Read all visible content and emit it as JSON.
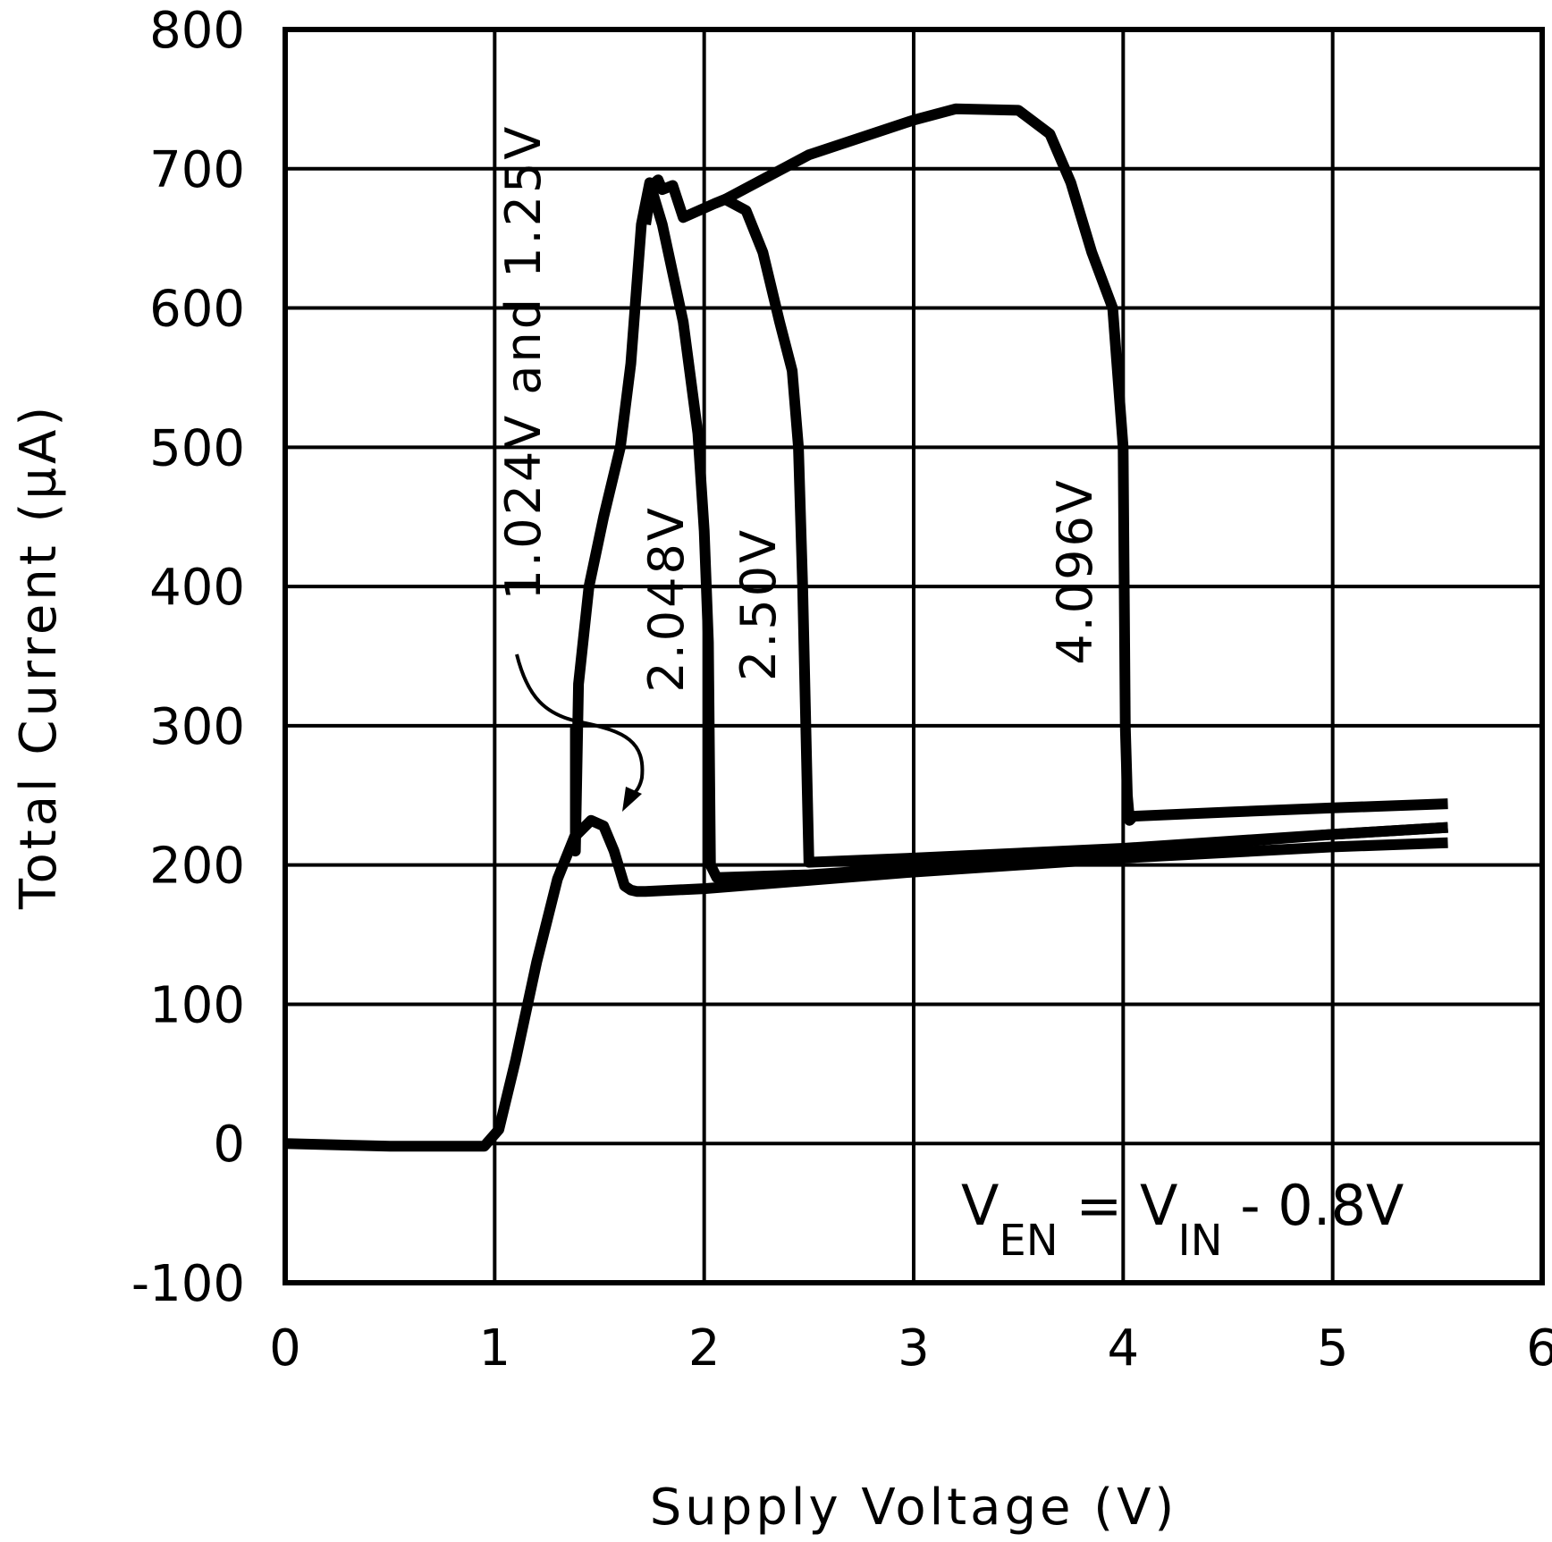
{
  "chart_data": {
    "type": "line",
    "title": "",
    "xlabel": "Supply Voltage (V)",
    "ylabel": "Total Current (µA)",
    "xlim": [
      0,
      6
    ],
    "ylim": [
      -100,
      800
    ],
    "x_ticks": [
      0,
      1,
      2,
      3,
      4,
      5,
      6
    ],
    "y_ticks": [
      -100,
      0,
      100,
      200,
      300,
      400,
      500,
      600,
      700,
      800
    ],
    "grid": true,
    "annotation": {
      "v_main": "V",
      "en_sub": "EN",
      "mid": " = V",
      "in_sub": "IN",
      "tail": " - 0.8V"
    },
    "series": [
      {
        "name": "1.024V and 1.25V",
        "x": [
          0,
          0.5,
          0.95,
          1.02,
          1.1,
          1.2,
          1.3,
          1.38,
          1.46,
          1.52,
          1.57,
          1.62,
          1.65,
          1.68,
          1.72,
          2.0,
          3.0,
          4.0,
          5.0,
          5.55
        ],
        "y": [
          0,
          -2,
          -2,
          10,
          60,
          130,
          190,
          220,
          232,
          228,
          210,
          185,
          182,
          181,
          181,
          183,
          195,
          205,
          213,
          216
        ]
      },
      {
        "name": "2.048V",
        "x": [
          1.38,
          1.385,
          1.385,
          1.4,
          1.45,
          1.52,
          1.6,
          1.65,
          1.7,
          1.74,
          1.8,
          1.9,
          1.97,
          2.0,
          2.02,
          2.03,
          2.06,
          2.5,
          3.0,
          4.0,
          5.0,
          5.55
        ],
        "y": [
          300,
          300,
          210,
          330,
          400,
          450,
          500,
          560,
          660,
          690,
          660,
          590,
          510,
          440,
          360,
          200,
          191,
          193,
          198,
          210,
          222,
          227
        ]
      },
      {
        "name": "2.50V",
        "x": [
          1.72,
          1.75,
          1.78,
          1.8,
          1.85,
          1.9,
          2.05,
          2.1,
          2.2,
          2.28,
          2.36,
          2.42,
          2.45,
          2.47,
          2.5,
          3.0,
          4.0,
          5.0,
          5.55
        ],
        "y": [
          660,
          688,
          692,
          685,
          688,
          665,
          675,
          678,
          670,
          640,
          590,
          555,
          500,
          400,
          202,
          205,
          212,
          222,
          227
        ]
      },
      {
        "name": "4.096V",
        "x": [
          2.1,
          2.5,
          3.0,
          3.2,
          3.5,
          3.65,
          3.75,
          3.85,
          3.95,
          4.0,
          4.01,
          4.02,
          4.03,
          4.05,
          4.5,
          5.0,
          5.55
        ],
        "y": [
          678,
          710,
          735,
          743,
          742,
          725,
          690,
          640,
          600,
          500,
          300,
          250,
          232,
          235,
          238,
          241,
          244
        ]
      }
    ],
    "series_labels": [
      "1.024V and 1.25V",
      "2.048V",
      "2.50V",
      "4.096V"
    ]
  }
}
